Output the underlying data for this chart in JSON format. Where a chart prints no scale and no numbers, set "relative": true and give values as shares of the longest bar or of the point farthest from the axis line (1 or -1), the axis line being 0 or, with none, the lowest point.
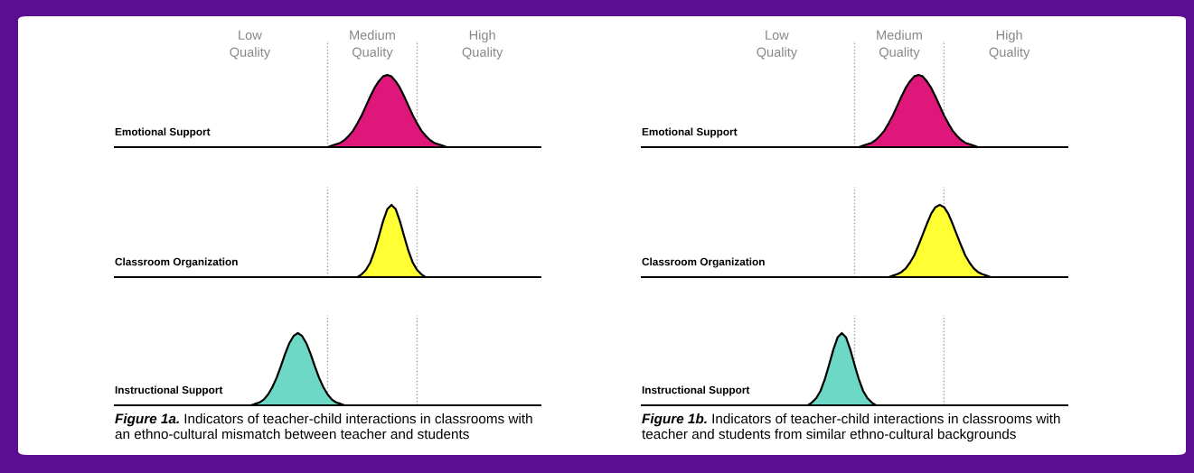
{
  "chart_data": [
    {
      "type": "area",
      "relative": true,
      "tick_labels": false,
      "title": "Emotional Support",
      "categories": [
        null,
        null,
        null,
        null,
        null,
        null,
        null,
        null,
        null,
        null,
        null,
        null,
        null,
        null,
        null,
        null,
        null,
        null,
        null,
        null,
        null,
        null,
        null,
        null,
        null,
        null,
        null,
        null,
        null,
        null,
        null,
        null,
        null,
        null,
        null,
        null,
        null,
        null,
        null,
        null,
        null,
        null,
        null,
        null,
        null,
        null,
        null,
        null,
        null,
        null,
        null,
        null,
        null,
        null,
        null,
        null,
        null,
        null,
        null,
        null,
        null,
        null,
        null,
        null,
        null,
        null,
        null,
        null,
        null,
        null,
        null,
        null,
        null,
        null,
        null,
        null,
        null,
        null,
        null,
        null,
        null,
        null,
        null,
        null,
        null,
        null,
        null,
        null,
        null,
        null,
        null,
        null,
        null,
        null,
        null,
        null,
        null,
        null,
        null,
        null,
        null
      ],
      "series": [
        {
          "color": "#e0177a",
          "values": [
            0,
            0,
            0,
            0,
            0,
            0,
            0,
            0,
            0,
            0,
            0,
            0,
            0,
            0,
            0,
            0,
            0,
            0,
            0,
            0,
            0,
            0,
            0,
            0,
            0,
            0,
            0,
            0,
            0,
            0,
            0,
            0,
            0,
            0,
            0,
            0,
            0,
            0,
            0,
            0,
            0,
            0,
            0,
            0,
            0,
            0,
            0,
            0,
            0,
            0,
            0,
            0.02,
            0.04,
            0.06,
            0.1,
            0.16,
            0.23,
            0.33,
            0.44,
            0.57,
            0.7,
            0.82,
            0.91,
            0.98,
            1,
            0.98,
            0.91,
            0.82,
            0.7,
            0.57,
            0.44,
            0.33,
            0.23,
            0.16,
            0.1,
            0.06,
            0.04,
            0.02,
            0,
            0,
            0,
            0,
            0,
            0,
            0,
            0,
            0,
            0,
            0,
            0,
            0,
            0,
            0,
            0,
            0,
            0,
            0,
            0,
            0,
            0,
            0
          ]
        }
      ],
      "annotations": [
        "Low\nQuality",
        "Medium\nQuality",
        "High\nQuality"
      ]
    },
    {
      "type": "area",
      "relative": true,
      "tick_labels": false,
      "title": "Classroom Organization",
      "categories": [
        null,
        null,
        null,
        null,
        null,
        null,
        null,
        null,
        null,
        null,
        null,
        null,
        null,
        null,
        null,
        null,
        null,
        null,
        null,
        null,
        null,
        null,
        null,
        null,
        null,
        null,
        null,
        null,
        null,
        null,
        null,
        null,
        null,
        null,
        null,
        null,
        null,
        null,
        null,
        null,
        null,
        null,
        null,
        null,
        null,
        null,
        null,
        null,
        null,
        null,
        null,
        null,
        null,
        null,
        null,
        null,
        null,
        null,
        null,
        null,
        null,
        null,
        null,
        null,
        null,
        null,
        null,
        null,
        null,
        null,
        null,
        null,
        null,
        null,
        null,
        null,
        null,
        null,
        null,
        null,
        null,
        null,
        null,
        null,
        null,
        null,
        null,
        null,
        null,
        null,
        null,
        null,
        null,
        null,
        null,
        null,
        null,
        null,
        null,
        null,
        null
      ],
      "series": [
        {
          "color": "#ffff33",
          "values": [
            0,
            0,
            0,
            0,
            0,
            0,
            0,
            0,
            0,
            0,
            0,
            0,
            0,
            0,
            0,
            0,
            0,
            0,
            0,
            0,
            0,
            0,
            0,
            0,
            0,
            0,
            0,
            0,
            0,
            0,
            0,
            0,
            0,
            0,
            0,
            0,
            0,
            0,
            0,
            0,
            0,
            0,
            0,
            0,
            0,
            0,
            0,
            0,
            0,
            0,
            0,
            0,
            0,
            0,
            0,
            0,
            0,
            0,
            0.04,
            0.1,
            0.2,
            0.36,
            0.56,
            0.77,
            0.94,
            1,
            0.94,
            0.77,
            0.56,
            0.36,
            0.2,
            0.1,
            0.04,
            0,
            0,
            0,
            0,
            0,
            0,
            0,
            0,
            0,
            0,
            0,
            0,
            0,
            0,
            0,
            0,
            0,
            0,
            0,
            0,
            0,
            0,
            0,
            0,
            0,
            0,
            0,
            0
          ]
        }
      ]
    },
    {
      "type": "area",
      "relative": true,
      "tick_labels": false,
      "title": "Instructional Support",
      "categories": [
        null,
        null,
        null,
        null,
        null,
        null,
        null,
        null,
        null,
        null,
        null,
        null,
        null,
        null,
        null,
        null,
        null,
        null,
        null,
        null,
        null,
        null,
        null,
        null,
        null,
        null,
        null,
        null,
        null,
        null,
        null,
        null,
        null,
        null,
        null,
        null,
        null,
        null,
        null,
        null,
        null,
        null,
        null,
        null,
        null,
        null,
        null,
        null,
        null,
        null,
        null,
        null,
        null,
        null,
        null,
        null,
        null,
        null,
        null,
        null,
        null,
        null,
        null,
        null,
        null,
        null,
        null,
        null,
        null,
        null,
        null,
        null,
        null,
        null,
        null,
        null,
        null,
        null,
        null,
        null,
        null,
        null,
        null,
        null,
        null,
        null,
        null,
        null,
        null,
        null,
        null,
        null,
        null,
        null,
        null,
        null,
        null,
        null,
        null,
        null,
        null
      ],
      "series": [
        {
          "color": "#6dd8c5",
          "values": [
            0,
            0,
            0,
            0,
            0,
            0,
            0,
            0,
            0,
            0,
            0,
            0,
            0,
            0,
            0,
            0,
            0,
            0,
            0,
            0,
            0,
            0,
            0,
            0,
            0,
            0,
            0,
            0,
            0,
            0,
            0,
            0,
            0,
            0.02,
            0.04,
            0.08,
            0.15,
            0.25,
            0.38,
            0.54,
            0.71,
            0.86,
            0.96,
            1,
            0.96,
            0.86,
            0.71,
            0.54,
            0.38,
            0.25,
            0.15,
            0.08,
            0.04,
            0.02,
            0,
            0,
            0,
            0,
            0,
            0,
            0,
            0,
            0,
            0,
            0,
            0,
            0,
            0,
            0,
            0,
            0,
            0,
            0,
            0,
            0,
            0,
            0,
            0,
            0,
            0,
            0,
            0,
            0,
            0,
            0,
            0,
            0,
            0,
            0,
            0,
            0,
            0,
            0,
            0,
            0,
            0,
            0,
            0,
            0,
            0,
            0
          ]
        }
      ],
      "annotations": [
        "Figure 1a.",
        "Indicators of teacher-child interactions in classrooms with\nan ethno-cultural mismatch between teacher and students"
      ]
    },
    {
      "type": "area",
      "relative": true,
      "tick_labels": false,
      "title": "Emotional Support",
      "categories": [
        null,
        null,
        null,
        null,
        null,
        null,
        null,
        null,
        null,
        null,
        null,
        null,
        null,
        null,
        null,
        null,
        null,
        null,
        null,
        null,
        null,
        null,
        null,
        null,
        null,
        null,
        null,
        null,
        null,
        null,
        null,
        null,
        null,
        null,
        null,
        null,
        null,
        null,
        null,
        null,
        null,
        null,
        null,
        null,
        null,
        null,
        null,
        null,
        null,
        null,
        null,
        null,
        null,
        null,
        null,
        null,
        null,
        null,
        null,
        null,
        null,
        null,
        null,
        null,
        null,
        null,
        null,
        null,
        null,
        null,
        null,
        null,
        null,
        null,
        null,
        null,
        null,
        null,
        null,
        null,
        null,
        null,
        null,
        null,
        null,
        null,
        null,
        null,
        null,
        null,
        null,
        null,
        null,
        null,
        null,
        null,
        null,
        null,
        null,
        null,
        null
      ],
      "series": [
        {
          "color": "#e0177a",
          "values": [
            0,
            0,
            0,
            0,
            0,
            0,
            0,
            0,
            0,
            0,
            0,
            0,
            0,
            0,
            0,
            0,
            0,
            0,
            0,
            0,
            0,
            0,
            0,
            0,
            0,
            0,
            0,
            0,
            0,
            0,
            0,
            0,
            0,
            0,
            0,
            0,
            0,
            0,
            0,
            0,
            0,
            0,
            0,
            0,
            0,
            0,
            0,
            0,
            0,
            0,
            0,
            0,
            0.02,
            0.04,
            0.06,
            0.1,
            0.16,
            0.23,
            0.33,
            0.44,
            0.57,
            0.7,
            0.82,
            0.91,
            0.98,
            1,
            0.98,
            0.91,
            0.82,
            0.7,
            0.57,
            0.44,
            0.33,
            0.23,
            0.16,
            0.1,
            0.06,
            0.04,
            0.02,
            0,
            0,
            0,
            0,
            0,
            0,
            0,
            0,
            0,
            0,
            0,
            0,
            0,
            0,
            0,
            0,
            0,
            0,
            0,
            0,
            0,
            0
          ]
        }
      ],
      "annotations": [
        "Low\nQuality",
        "Medium\nQuality",
        "High\nQuality"
      ]
    },
    {
      "type": "area",
      "relative": true,
      "tick_labels": false,
      "title": "Classroom Organization",
      "categories": [
        null,
        null,
        null,
        null,
        null,
        null,
        null,
        null,
        null,
        null,
        null,
        null,
        null,
        null,
        null,
        null,
        null,
        null,
        null,
        null,
        null,
        null,
        null,
        null,
        null,
        null,
        null,
        null,
        null,
        null,
        null,
        null,
        null,
        null,
        null,
        null,
        null,
        null,
        null,
        null,
        null,
        null,
        null,
        null,
        null,
        null,
        null,
        null,
        null,
        null,
        null,
        null,
        null,
        null,
        null,
        null,
        null,
        null,
        null,
        null,
        null,
        null,
        null,
        null,
        null,
        null,
        null,
        null,
        null,
        null,
        null,
        null,
        null,
        null,
        null,
        null,
        null,
        null,
        null,
        null,
        null,
        null,
        null,
        null,
        null,
        null,
        null,
        null,
        null,
        null,
        null,
        null,
        null,
        null,
        null,
        null,
        null,
        null,
        null,
        null,
        null
      ],
      "series": [
        {
          "color": "#ffff33",
          "values": [
            0,
            0,
            0,
            0,
            0,
            0,
            0,
            0,
            0,
            0,
            0,
            0,
            0,
            0,
            0,
            0,
            0,
            0,
            0,
            0,
            0,
            0,
            0,
            0,
            0,
            0,
            0,
            0,
            0,
            0,
            0,
            0,
            0,
            0,
            0,
            0,
            0,
            0,
            0,
            0,
            0,
            0,
            0,
            0,
            0,
            0,
            0,
            0,
            0,
            0,
            0,
            0,
            0,
            0,
            0,
            0,
            0,
            0,
            0,
            0.02,
            0.04,
            0.07,
            0.12,
            0.2,
            0.3,
            0.44,
            0.59,
            0.74,
            0.88,
            0.97,
            1,
            0.97,
            0.88,
            0.74,
            0.59,
            0.44,
            0.3,
            0.2,
            0.12,
            0.07,
            0.04,
            0.02,
            0,
            0,
            0,
            0,
            0,
            0,
            0,
            0,
            0,
            0,
            0,
            0,
            0,
            0,
            0,
            0,
            0,
            0,
            0
          ]
        }
      ]
    },
    {
      "type": "area",
      "relative": true,
      "tick_labels": false,
      "title": "Instructional Support",
      "categories": [
        null,
        null,
        null,
        null,
        null,
        null,
        null,
        null,
        null,
        null,
        null,
        null,
        null,
        null,
        null,
        null,
        null,
        null,
        null,
        null,
        null,
        null,
        null,
        null,
        null,
        null,
        null,
        null,
        null,
        null,
        null,
        null,
        null,
        null,
        null,
        null,
        null,
        null,
        null,
        null,
        null,
        null,
        null,
        null,
        null,
        null,
        null,
        null,
        null,
        null,
        null,
        null,
        null,
        null,
        null,
        null,
        null,
        null,
        null,
        null,
        null,
        null,
        null,
        null,
        null,
        null,
        null,
        null,
        null,
        null,
        null,
        null,
        null,
        null,
        null,
        null,
        null,
        null,
        null,
        null,
        null,
        null,
        null,
        null,
        null,
        null,
        null,
        null,
        null,
        null,
        null,
        null,
        null,
        null,
        null,
        null,
        null,
        null,
        null,
        null,
        null
      ],
      "series": [
        {
          "color": "#6dd8c5",
          "values": [
            0,
            0,
            0,
            0,
            0,
            0,
            0,
            0,
            0,
            0,
            0,
            0,
            0,
            0,
            0,
            0,
            0,
            0,
            0,
            0,
            0,
            0,
            0,
            0,
            0,
            0,
            0,
            0,
            0,
            0,
            0,
            0,
            0,
            0,
            0,
            0,
            0,
            0,
            0,
            0,
            0.04,
            0.1,
            0.2,
            0.36,
            0.56,
            0.77,
            0.94,
            1,
            0.94,
            0.77,
            0.56,
            0.36,
            0.2,
            0.1,
            0.04,
            0,
            0,
            0,
            0,
            0,
            0,
            0,
            0,
            0,
            0,
            0,
            0,
            0,
            0,
            0,
            0,
            0,
            0,
            0,
            0,
            0,
            0,
            0,
            0,
            0,
            0,
            0,
            0,
            0,
            0,
            0,
            0,
            0,
            0,
            0,
            0,
            0,
            0,
            0,
            0,
            0,
            0,
            0,
            0,
            0,
            0
          ]
        }
      ],
      "annotations": [
        "Figure 1b.",
        "Indicators of teacher-child interactions in classrooms with\nteacher and students from similar ethno-cultural backgrounds"
      ]
    }
  ]
}
